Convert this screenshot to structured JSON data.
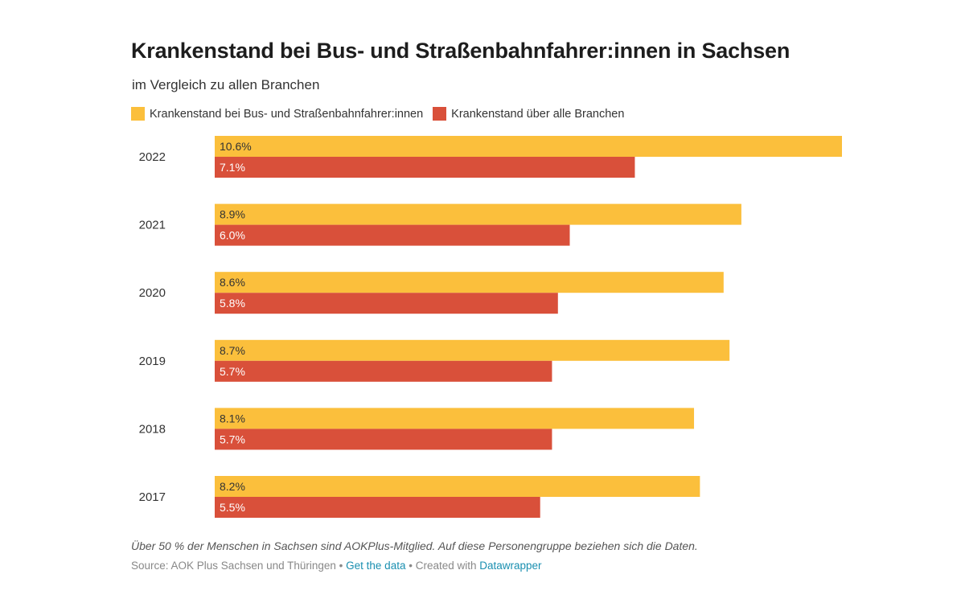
{
  "header": {
    "title": "Krankenstand bei Bus- und Straßenbahnfahrer:innen in Sachsen",
    "subtitle": "im Vergleich zu allen Branchen"
  },
  "footer": {
    "note": "Über 50 % der Menschen in Sachsen sind AOKPlus-Mitglied. Auf diese Personengruppe beziehen sich die Daten.",
    "source_prefix": "Source: AOK Plus Sachsen und Thüringen",
    "separator": " • ",
    "get_data_label": "Get the data",
    "created_with_label": "Created with",
    "datawrapper_label": "Datawrapper"
  },
  "chart_data": {
    "type": "bar",
    "orientation": "horizontal",
    "categories": [
      "2022",
      "2021",
      "2020",
      "2019",
      "2018",
      "2017"
    ],
    "series": [
      {
        "name": "Krankenstand bei Bus- und Straßenbahnfahrer:innen",
        "color": "#fbbf3c",
        "values": [
          10.6,
          8.9,
          8.6,
          8.7,
          8.1,
          8.2
        ],
        "labels": [
          "10.6%",
          "8.9%",
          "8.6%",
          "8.7%",
          "8.1%",
          "8.2%"
        ]
      },
      {
        "name": "Krankenstand über alle Branchen",
        "color": "#d9503a",
        "values": [
          7.1,
          6.0,
          5.8,
          5.7,
          5.7,
          5.5
        ],
        "labels": [
          "7.1%",
          "6.0%",
          "5.8%",
          "5.7%",
          "5.7%",
          "5.5%"
        ]
      }
    ],
    "xlim": [
      0,
      10.6
    ],
    "grid": false,
    "legend_position": "top-left"
  }
}
